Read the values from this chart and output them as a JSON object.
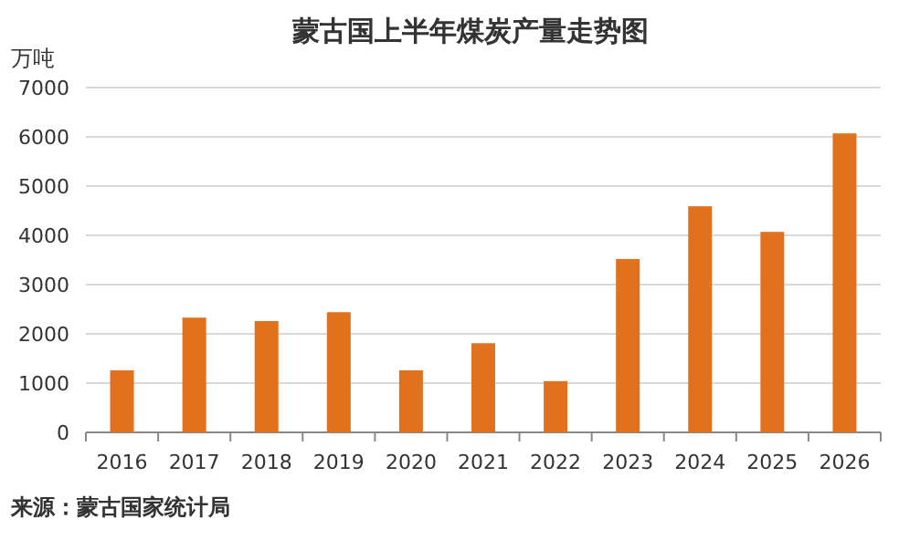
{
  "chart_data": {
    "type": "bar",
    "title": "蒙古国上半年煤炭产量走势图",
    "ylabel": "万吨",
    "categories": [
      "2016",
      "2017",
      "2018",
      "2019",
      "2020",
      "2021",
      "2022",
      "2023",
      "2024",
      "2025",
      "2026"
    ],
    "values": [
      1260,
      2330,
      2260,
      2440,
      1260,
      1810,
      1040,
      3520,
      4590,
      4070,
      6070
    ],
    "color": "#e2711d",
    "ylim": [
      0,
      7000
    ],
    "yticks": [
      0,
      1000,
      2000,
      3000,
      4000,
      5000,
      6000,
      7000
    ],
    "grid": "y",
    "annotations": [
      "来源：蒙古国家统计局"
    ]
  }
}
